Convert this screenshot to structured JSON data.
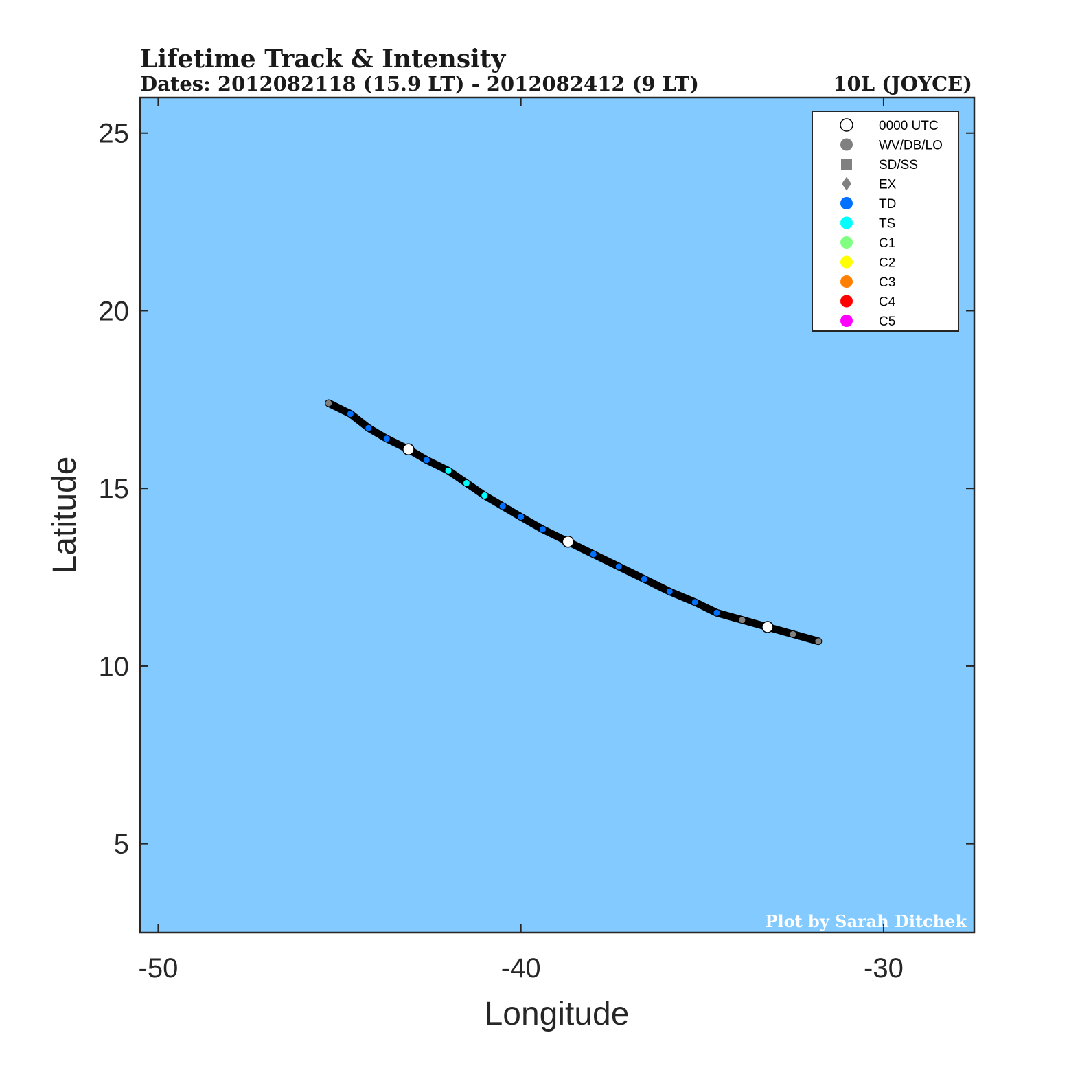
{
  "chart_data": {
    "type": "line",
    "title": "Lifetime Track & Intensity",
    "subtitle": "Dates: 2012082118 (15.9 LT) - 2012082412 (9 LT)",
    "storm_label": "10L (JOYCE)",
    "xlabel": "Longitude",
    "ylabel": "Latitude",
    "xlim": [
      -50.5,
      -27.5
    ],
    "ylim": [
      2.5,
      26
    ],
    "xticks": [
      -50,
      -40,
      -30
    ],
    "yticks": [
      5,
      10,
      15,
      20,
      25
    ],
    "grid": false,
    "background_color": "#82caff",
    "track_color": "#000000",
    "track": [
      {
        "lon": -45.3,
        "lat": 17.4,
        "cat": "LO"
      },
      {
        "lon": -44.7,
        "lat": 17.1,
        "cat": "TD"
      },
      {
        "lon": -44.2,
        "lat": 16.7,
        "cat": "TD"
      },
      {
        "lon": -43.7,
        "lat": 16.4,
        "cat": "TD"
      },
      {
        "lon": -43.1,
        "lat": 16.1,
        "cat": "TD",
        "utc00": true
      },
      {
        "lon": -42.6,
        "lat": 15.8,
        "cat": "TD"
      },
      {
        "lon": -42.0,
        "lat": 15.5,
        "cat": "TS"
      },
      {
        "lon": -41.5,
        "lat": 15.15,
        "cat": "TS"
      },
      {
        "lon": -41.0,
        "lat": 14.8,
        "cat": "TS"
      },
      {
        "lon": -40.5,
        "lat": 14.5,
        "cat": "TD"
      },
      {
        "lon": -40.0,
        "lat": 14.2,
        "cat": "TD"
      },
      {
        "lon": -39.4,
        "lat": 13.85,
        "cat": "TD"
      },
      {
        "lon": -38.7,
        "lat": 13.5,
        "cat": "TD",
        "utc00": true
      },
      {
        "lon": -38.0,
        "lat": 13.15,
        "cat": "TD"
      },
      {
        "lon": -37.3,
        "lat": 12.8,
        "cat": "TD"
      },
      {
        "lon": -36.6,
        "lat": 12.45,
        "cat": "TD"
      },
      {
        "lon": -35.9,
        "lat": 12.1,
        "cat": "TD"
      },
      {
        "lon": -35.2,
        "lat": 11.8,
        "cat": "TD"
      },
      {
        "lon": -34.6,
        "lat": 11.5,
        "cat": "TD"
      },
      {
        "lon": -33.9,
        "lat": 11.3,
        "cat": "LO"
      },
      {
        "lon": -33.2,
        "lat": 11.1,
        "cat": "LO",
        "utc00": true
      },
      {
        "lon": -32.5,
        "lat": 10.9,
        "cat": "LO"
      },
      {
        "lon": -31.8,
        "lat": 10.7,
        "cat": "LO"
      }
    ],
    "category_colors": {
      "LO": "#808080",
      "TD": "#0070ff",
      "TS": "#00ffff",
      "C1": "#80ff80",
      "C2": "#ffff00",
      "C3": "#ff8000",
      "C4": "#ff0000",
      "C5": "#ff00ff"
    },
    "legend_placement": "top-right",
    "legend": [
      {
        "label": "0000 UTC",
        "marker": "circle-open",
        "color": "#ffffff"
      },
      {
        "label": "WV/DB/LO",
        "marker": "circle",
        "color": "#808080"
      },
      {
        "label": "SD/SS",
        "marker": "square",
        "color": "#808080"
      },
      {
        "label": "EX",
        "marker": "diamond",
        "color": "#808080"
      },
      {
        "label": "TD",
        "marker": "circle",
        "color": "#0070ff"
      },
      {
        "label": "TS",
        "marker": "circle",
        "color": "#00ffff"
      },
      {
        "label": "C1",
        "marker": "circle",
        "color": "#80ff80"
      },
      {
        "label": "C2",
        "marker": "circle",
        "color": "#ffff00"
      },
      {
        "label": "C3",
        "marker": "circle",
        "color": "#ff8000"
      },
      {
        "label": "C4",
        "marker": "circle",
        "color": "#ff0000"
      },
      {
        "label": "C5",
        "marker": "circle",
        "color": "#ff00ff"
      }
    ],
    "credit": "Plot by Sarah Ditchek"
  }
}
